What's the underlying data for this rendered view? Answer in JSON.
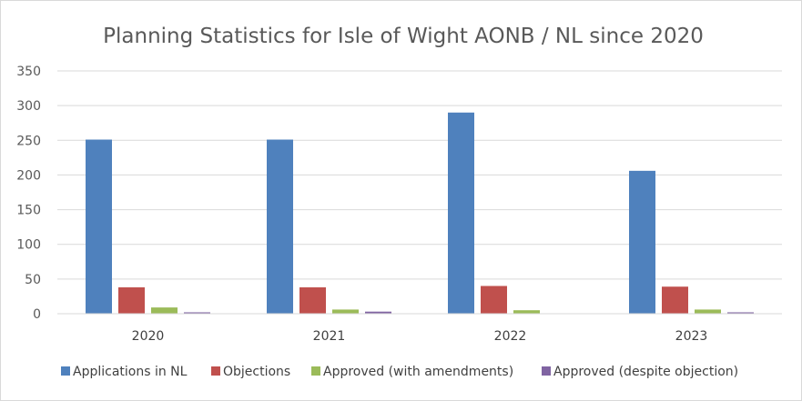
{
  "chart_data": {
    "type": "bar",
    "title": "Planning Statistics for Isle of Wight AONB / NL since 2020",
    "xlabel": "",
    "ylabel": "",
    "categories": [
      "2020",
      "2021",
      "2022",
      "2023"
    ],
    "ylim": [
      0,
      350
    ],
    "yticks": [
      0,
      50,
      100,
      150,
      200,
      250,
      300,
      350
    ],
    "grid": true,
    "legend_position": "bottom",
    "series": [
      {
        "name": "Applications in NL",
        "color": "#4f81bd",
        "values": [
          251,
          251,
          290,
          206
        ]
      },
      {
        "name": "Objections",
        "color": "#c0504d",
        "values": [
          38,
          38,
          40,
          39
        ]
      },
      {
        "name": "Approved (with amendments)",
        "color": "#9bbb59",
        "values": [
          9,
          6,
          5,
          6
        ]
      },
      {
        "name": "Approved (despite objection)",
        "color": "#8064a2",
        "values": [
          2,
          3,
          0,
          2
        ]
      }
    ]
  }
}
